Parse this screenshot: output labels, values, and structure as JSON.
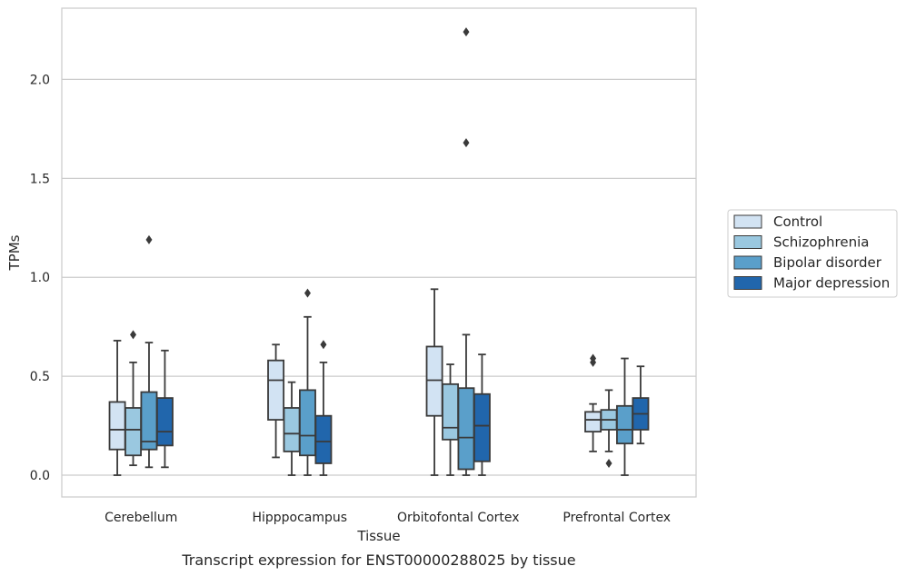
{
  "caption": "Transcript expression for ENST00000288025 by tissue",
  "chart_data": {
    "type": "box",
    "xlabel": "Tissue",
    "ylabel": "TPMs",
    "ylim": [
      -0.11,
      2.36
    ],
    "yticks": [
      "0.0",
      "0.5",
      "1.0",
      "1.5",
      "2.0"
    ],
    "ytick_values": [
      0,
      0.5,
      1.0,
      1.5,
      2.0
    ],
    "grid": "horizontal",
    "legend_position": "right",
    "categories": [
      "Cerebellum",
      "Hipppocampus",
      "Orbitofontal Cortex",
      "Prefrontal Cortex"
    ],
    "series": [
      {
        "name": "Control",
        "color": "#d2e3f3",
        "boxes": [
          {
            "whisker_low": 0.0,
            "q1": 0.13,
            "median": 0.23,
            "q3": 0.37,
            "whisker_high": 0.68,
            "outliers": []
          },
          {
            "whisker_low": 0.09,
            "q1": 0.28,
            "median": 0.48,
            "q3": 0.58,
            "whisker_high": 0.66,
            "outliers": []
          },
          {
            "whisker_low": 0.0,
            "q1": 0.3,
            "median": 0.48,
            "q3": 0.65,
            "whisker_high": 0.94,
            "outliers": []
          },
          {
            "whisker_low": 0.12,
            "q1": 0.22,
            "median": 0.28,
            "q3": 0.32,
            "whisker_high": 0.36,
            "outliers": [
              0.57,
              0.59
            ]
          }
        ]
      },
      {
        "name": "Schizophrenia",
        "color": "#9ac8e0",
        "boxes": [
          {
            "whisker_low": 0.05,
            "q1": 0.1,
            "median": 0.23,
            "q3": 0.34,
            "whisker_high": 0.57,
            "outliers": [
              0.71
            ]
          },
          {
            "whisker_low": 0.0,
            "q1": 0.12,
            "median": 0.21,
            "q3": 0.34,
            "whisker_high": 0.47,
            "outliers": []
          },
          {
            "whisker_low": 0.0,
            "q1": 0.18,
            "median": 0.24,
            "q3": 0.46,
            "whisker_high": 0.56,
            "outliers": []
          },
          {
            "whisker_low": 0.12,
            "q1": 0.23,
            "median": 0.28,
            "q3": 0.33,
            "whisker_high": 0.43,
            "outliers": [
              0.06
            ]
          }
        ]
      },
      {
        "name": "Bipolar disorder",
        "color": "#5a9fca",
        "boxes": [
          {
            "whisker_low": 0.04,
            "q1": 0.13,
            "median": 0.17,
            "q3": 0.42,
            "whisker_high": 0.67,
            "outliers": [
              1.19
            ]
          },
          {
            "whisker_low": 0.0,
            "q1": 0.1,
            "median": 0.2,
            "q3": 0.43,
            "whisker_high": 0.8,
            "outliers": [
              0.92
            ]
          },
          {
            "whisker_low": 0.0,
            "q1": 0.03,
            "median": 0.19,
            "q3": 0.44,
            "whisker_high": 0.71,
            "outliers": [
              1.68,
              2.24
            ]
          },
          {
            "whisker_low": 0.0,
            "q1": 0.16,
            "median": 0.23,
            "q3": 0.35,
            "whisker_high": 0.59,
            "outliers": []
          }
        ]
      },
      {
        "name": "Major depression",
        "color": "#2166ac",
        "boxes": [
          {
            "whisker_low": 0.04,
            "q1": 0.15,
            "median": 0.22,
            "q3": 0.39,
            "whisker_high": 0.63,
            "outliers": []
          },
          {
            "whisker_low": 0.0,
            "q1": 0.06,
            "median": 0.17,
            "q3": 0.3,
            "whisker_high": 0.57,
            "outliers": [
              0.66
            ]
          },
          {
            "whisker_low": 0.0,
            "q1": 0.07,
            "median": 0.25,
            "q3": 0.41,
            "whisker_high": 0.61,
            "outliers": []
          },
          {
            "whisker_low": 0.16,
            "q1": 0.23,
            "median": 0.31,
            "q3": 0.39,
            "whisker_high": 0.55,
            "outliers": []
          }
        ]
      }
    ]
  }
}
